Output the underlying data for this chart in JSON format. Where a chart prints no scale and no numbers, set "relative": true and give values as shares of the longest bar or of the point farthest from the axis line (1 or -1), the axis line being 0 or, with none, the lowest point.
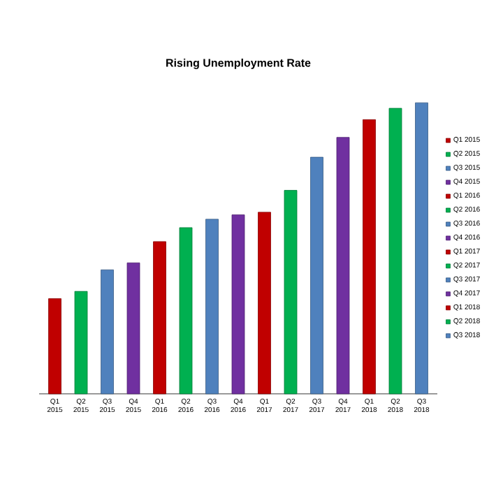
{
  "chart_data": {
    "type": "bar",
    "title": "Rising Unemployment Rate",
    "relative": true,
    "legend": "right",
    "categories": [
      "Q1 2015",
      "Q2 2015",
      "Q3 2015",
      "Q4 2015",
      "Q1 2016",
      "Q2 2016",
      "Q3 2016",
      "Q4 2016",
      "Q1 2017",
      "Q2 2017",
      "Q3 2017",
      "Q4 2017",
      "Q1 2018",
      "Q2 2018",
      "Q3 2018"
    ],
    "series": [
      {
        "name": "Q1 2015",
        "color": "#c00000",
        "values": [
          0.327,
          null,
          null,
          null,
          null,
          null,
          null,
          null,
          null,
          null,
          null,
          null,
          null,
          null,
          null
        ]
      },
      {
        "name": "Q2 2015",
        "color": "#00b050",
        "values": [
          null,
          0.352,
          null,
          null,
          null,
          null,
          null,
          null,
          null,
          null,
          null,
          null,
          null,
          null,
          null
        ]
      },
      {
        "name": "Q3 2015",
        "color": "#4f81bd",
        "values": [
          null,
          null,
          0.426,
          null,
          null,
          null,
          null,
          null,
          null,
          null,
          null,
          null,
          null,
          null,
          null
        ]
      },
      {
        "name": "Q4 2015",
        "color": "#7030a0",
        "values": [
          null,
          null,
          null,
          0.45,
          null,
          null,
          null,
          null,
          null,
          null,
          null,
          null,
          null,
          null,
          null
        ]
      },
      {
        "name": "Q1 2016",
        "color": "#c00000",
        "values": [
          null,
          null,
          null,
          null,
          0.523,
          null,
          null,
          null,
          null,
          null,
          null,
          null,
          null,
          null,
          null
        ]
      },
      {
        "name": "Q2 2016",
        "color": "#00b050",
        "values": [
          null,
          null,
          null,
          null,
          null,
          0.571,
          null,
          null,
          null,
          null,
          null,
          null,
          null,
          null,
          null
        ]
      },
      {
        "name": "Q3 2016",
        "color": "#4f81bd",
        "values": [
          null,
          null,
          null,
          null,
          null,
          null,
          0.6,
          null,
          null,
          null,
          null,
          null,
          null,
          null,
          null
        ]
      },
      {
        "name": "Q4 2016",
        "color": "#7030a0",
        "values": [
          null,
          null,
          null,
          null,
          null,
          null,
          null,
          0.615,
          null,
          null,
          null,
          null,
          null,
          null,
          null
        ]
      },
      {
        "name": "Q1 2017",
        "color": "#c00000",
        "values": [
          null,
          null,
          null,
          null,
          null,
          null,
          null,
          null,
          0.624,
          null,
          null,
          null,
          null,
          null,
          null
        ]
      },
      {
        "name": "Q2 2017",
        "color": "#00b050",
        "values": [
          null,
          null,
          null,
          null,
          null,
          null,
          null,
          null,
          null,
          0.699,
          null,
          null,
          null,
          null,
          null
        ]
      },
      {
        "name": "Q3 2017",
        "color": "#4f81bd",
        "values": [
          null,
          null,
          null,
          null,
          null,
          null,
          null,
          null,
          null,
          null,
          0.813,
          null,
          null,
          null,
          null
        ]
      },
      {
        "name": "Q4 2017",
        "color": "#7030a0",
        "values": [
          null,
          null,
          null,
          null,
          null,
          null,
          null,
          null,
          null,
          null,
          null,
          0.881,
          null,
          null,
          null
        ]
      },
      {
        "name": "Q1 2018",
        "color": "#c00000",
        "values": [
          null,
          null,
          null,
          null,
          null,
          null,
          null,
          null,
          null,
          null,
          null,
          null,
          0.942,
          null,
          null
        ]
      },
      {
        "name": "Q2 2018",
        "color": "#00b050",
        "values": [
          null,
          null,
          null,
          null,
          null,
          null,
          null,
          null,
          null,
          null,
          null,
          null,
          null,
          0.981,
          null
        ]
      },
      {
        "name": "Q3 2018",
        "color": "#4f81bd",
        "values": [
          null,
          null,
          null,
          null,
          null,
          null,
          null,
          null,
          null,
          null,
          null,
          null,
          null,
          null,
          1
        ]
      }
    ]
  }
}
